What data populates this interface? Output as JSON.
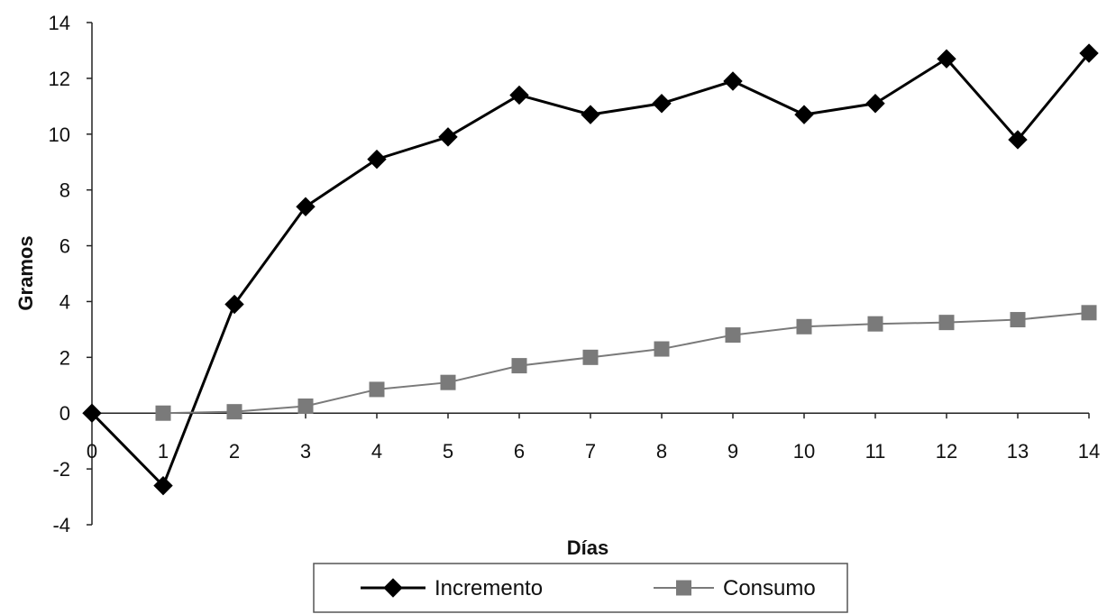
{
  "chart_data": {
    "type": "line",
    "title": "",
    "xlabel": "Días",
    "ylabel": "Gramos",
    "xlim": [
      0,
      14
    ],
    "ylim": [
      -4,
      14
    ],
    "x_ticks": [
      "0",
      "1",
      "2",
      "3",
      "4",
      "5",
      "6",
      "7",
      "8",
      "9",
      "10",
      "11",
      "12",
      "13",
      "14"
    ],
    "y_ticks": [
      "14",
      "12",
      "10",
      "8",
      "6",
      "4",
      "2",
      "0",
      "-2",
      "-4"
    ],
    "grid": false,
    "legend_position": "bottom",
    "series": [
      {
        "name": "Incremento",
        "color": "#000000",
        "marker": "diamond",
        "x": [
          0,
          1,
          2,
          3,
          4,
          5,
          6,
          7,
          8,
          9,
          10,
          11,
          12,
          13,
          14
        ],
        "values": [
          0,
          -2.6,
          3.9,
          7.4,
          9.1,
          9.9,
          11.4,
          10.7,
          11.1,
          11.9,
          10.7,
          11.1,
          12.7,
          9.8,
          12.9
        ]
      },
      {
        "name": "Consumo",
        "color": "#7a7a7a",
        "marker": "square",
        "x": [
          1,
          2,
          3,
          4,
          5,
          6,
          7,
          8,
          9,
          10,
          11,
          12,
          13,
          14
        ],
        "values": [
          0,
          0.05,
          0.25,
          0.85,
          1.1,
          1.7,
          2.0,
          2.3,
          2.8,
          3.1,
          3.2,
          3.25,
          3.35,
          3.6
        ]
      }
    ]
  }
}
